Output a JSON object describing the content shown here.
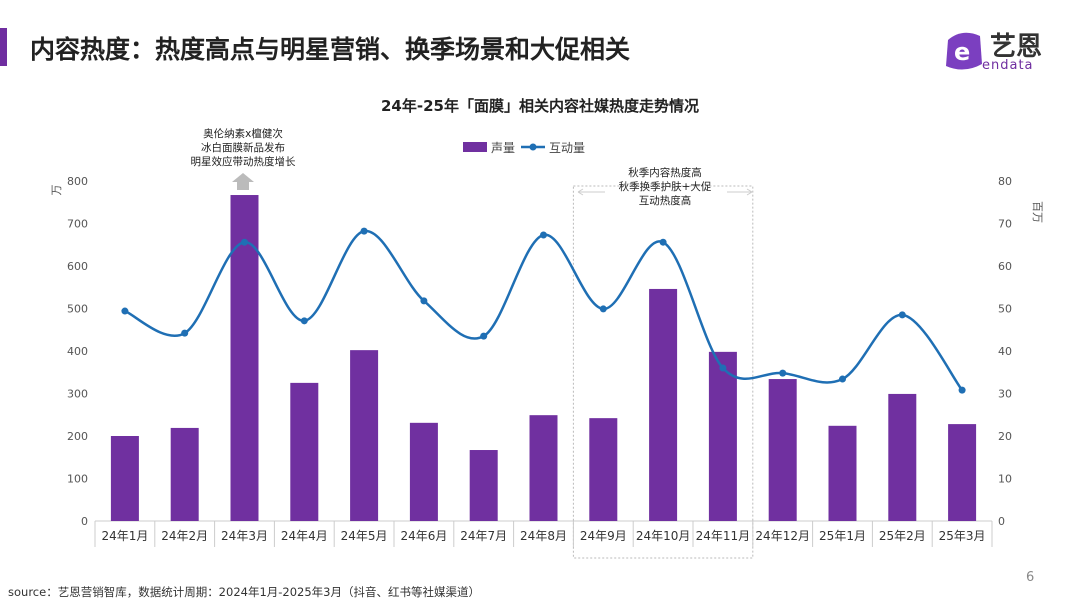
{
  "header": {
    "title": "内容热度：热度高点与明星营销、换季场景和大促相关",
    "logo_cn": "艺恩",
    "logo_en": "endata"
  },
  "footer": {
    "source": "source：艺恩营销智库，数据统计周期：2024年1月-2025年3月（抖音、红书等社媒渠道）",
    "page": "6"
  },
  "colors": {
    "bar": "#7030a0",
    "line": "#1f6fb4",
    "accent": "#6f2ea0"
  },
  "chart_data": {
    "type": "bar+line",
    "title": "24年-25年「面膜」相关内容社媒热度走势情况",
    "ylabel": "万",
    "y2label": "百万",
    "ylim": [
      0,
      800
    ],
    "y2lim": [
      0,
      80
    ],
    "yticks": [
      "0",
      "100",
      "200",
      "300",
      "400",
      "500",
      "600",
      "700",
      "800"
    ],
    "y2ticks": [
      "0",
      "10",
      "20",
      "30",
      "40",
      "50",
      "60",
      "70",
      "80"
    ],
    "legend": "top-center",
    "categories": [
      "24年1月",
      "24年2月",
      "24年3月",
      "24年4月",
      "24年5月",
      "24年6月",
      "24年7月",
      "24年8月",
      "24年9月",
      "24年10月",
      "24年11月",
      "24年12月",
      "25年1月",
      "25年2月",
      "25年3月"
    ],
    "series": [
      {
        "name": "声量",
        "type": "bar",
        "axis": "left",
        "values": [
          200,
          219,
          767,
          325,
          402,
          231,
          167,
          249,
          242,
          546,
          398,
          334,
          224,
          299,
          228
        ]
      },
      {
        "name": "互动量",
        "type": "line",
        "axis": "right",
        "values": [
          49.4,
          44.2,
          65.6,
          47.1,
          68.2,
          51.8,
          43.5,
          67.3,
          49.9,
          65.6,
          36,
          34.8,
          33.4,
          48.5,
          30.8
        ]
      }
    ],
    "annotations": [
      {
        "lines": [
          "奥伦纳素x檀健次",
          "冰白面膜新品发布",
          "明星效应带动热度增长"
        ]
      },
      {
        "lines": [
          "秋季内容热度高",
          "秋季换季护肤+大促",
          "互动热度高"
        ]
      }
    ]
  }
}
